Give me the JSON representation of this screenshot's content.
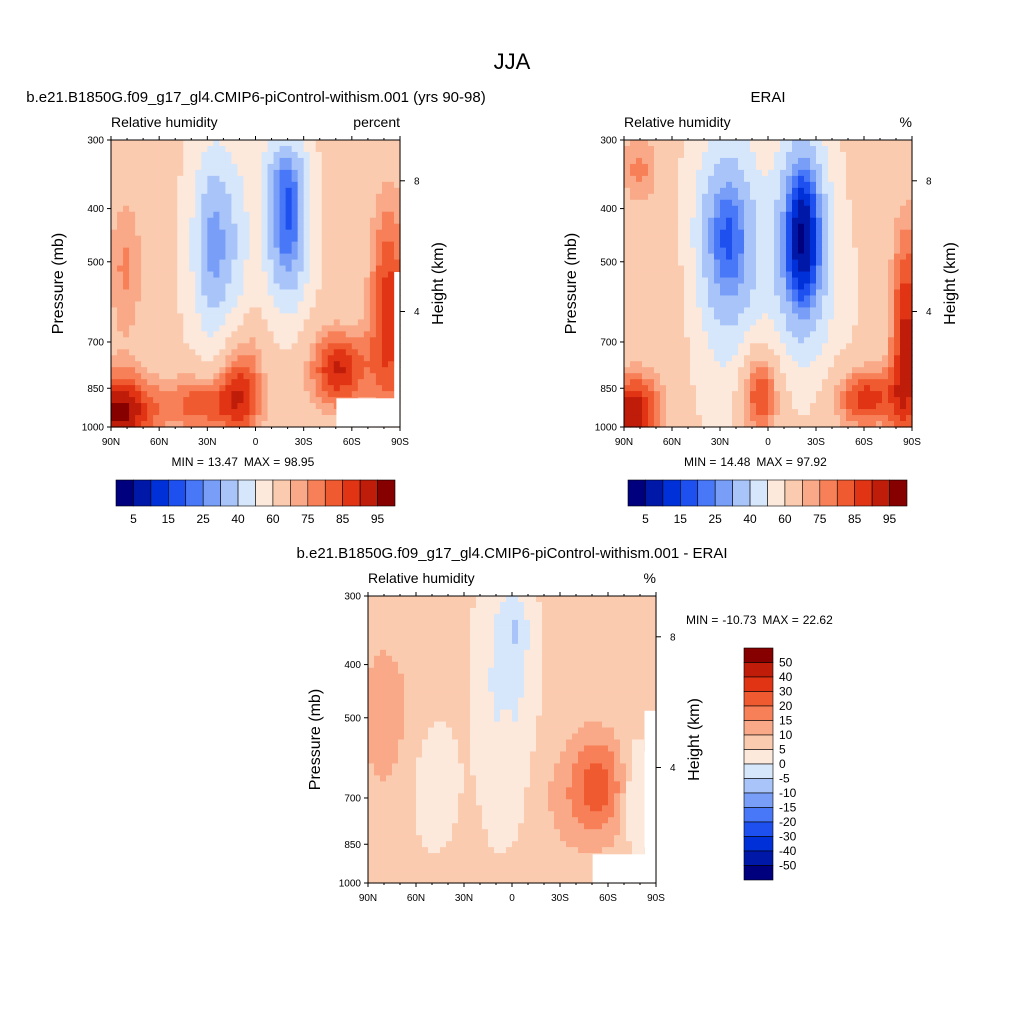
{
  "figure": {
    "title": "JJA"
  },
  "colors": {
    "rh_scale": [
      "#00007f",
      "#0018a8",
      "#0030d8",
      "#1e50f0",
      "#4878f8",
      "#789ef8",
      "#a8c4f8",
      "#d6e6fb",
      "#fde8dc",
      "#fbcbb0",
      "#f9a988",
      "#f78058",
      "#f05a30",
      "#e03414",
      "#bf1c0a",
      "#860000"
    ],
    "diff_scale": [
      "#00007f",
      "#0018a8",
      "#0030d8",
      "#1e50f0",
      "#4878f8",
      "#789ef8",
      "#a8c4f8",
      "#d6e6fb",
      "#fde8dc",
      "#fbcbb0",
      "#f9a988",
      "#f78058",
      "#f05a30",
      "#e03414",
      "#bf1c0a",
      "#860000"
    ],
    "missing": "#ffffff"
  },
  "chart_data": [
    {
      "type": "heatmap",
      "title": "b.e21.B1850G.f09_g17_gl4.CMIP6-piControl-withism.001 (yrs 90-98)",
      "left_label": "Relative humidity",
      "right_label": "percent",
      "xlabel": "",
      "ylabel": "Pressure (mb)",
      "ylabel_right": "Height (km)",
      "x_ticks": [
        "90N",
        "60N",
        "30N",
        "0",
        "30S",
        "60S",
        "90S"
      ],
      "x_range": [
        90,
        -90
      ],
      "y_ticks": [
        "300",
        "400",
        "500",
        "700",
        "850",
        "1000"
      ],
      "y_range": [
        300,
        1000
      ],
      "y_scale": "log",
      "height_ticks": [
        "8",
        "4"
      ],
      "min_label": "MIN =",
      "min_value": "13.47",
      "max_label": "MAX =",
      "max_value": "98.95",
      "colorbar_labels": [
        "5",
        "15",
        "25",
        "40",
        "60",
        "75",
        "85",
        "95"
      ],
      "colorbar_levels": [
        5,
        10,
        15,
        20,
        25,
        30,
        40,
        50,
        60,
        70,
        75,
        80,
        85,
        90,
        95
      ],
      "colorbar_orientation": "horizontal",
      "dataset": "model"
    },
    {
      "type": "heatmap",
      "title": "ERAI",
      "left_label": "Relative humidity",
      "right_label": "%",
      "xlabel": "",
      "ylabel": "Pressure (mb)",
      "ylabel_right": "Height (km)",
      "x_ticks": [
        "90N",
        "60N",
        "30N",
        "0",
        "30S",
        "60S",
        "90S"
      ],
      "x_range": [
        90,
        -90
      ],
      "y_ticks": [
        "300",
        "400",
        "500",
        "700",
        "850",
        "1000"
      ],
      "y_range": [
        300,
        1000
      ],
      "y_scale": "log",
      "height_ticks": [
        "8",
        "4"
      ],
      "min_label": "MIN =",
      "min_value": "14.48",
      "max_label": "MAX =",
      "max_value": "97.92",
      "colorbar_labels": [
        "5",
        "15",
        "25",
        "40",
        "60",
        "75",
        "85",
        "95"
      ],
      "colorbar_levels": [
        5,
        10,
        15,
        20,
        25,
        30,
        40,
        50,
        60,
        70,
        75,
        80,
        85,
        90,
        95
      ],
      "colorbar_orientation": "horizontal",
      "dataset": "erai"
    },
    {
      "type": "heatmap",
      "title": "b.e21.B1850G.f09_g17_gl4.CMIP6-piControl-withism.001 - ERAI",
      "left_label": "Relative humidity",
      "right_label": "%",
      "xlabel": "",
      "ylabel": "Pressure (mb)",
      "ylabel_right": "Height (km)",
      "x_ticks": [
        "90N",
        "60N",
        "30N",
        "0",
        "30S",
        "60S",
        "90S"
      ],
      "x_range": [
        90,
        -90
      ],
      "y_ticks": [
        "300",
        "400",
        "500",
        "700",
        "850",
        "1000"
      ],
      "y_range": [
        300,
        1000
      ],
      "y_scale": "log",
      "height_ticks": [
        "8",
        "4"
      ],
      "min_label": "MIN =",
      "min_value": "-10.73",
      "max_label": "MAX =",
      "max_value": "22.62",
      "colorbar_labels": [
        "50",
        "40",
        "30",
        "20",
        "15",
        "10",
        "5",
        "0",
        "-5",
        "-10",
        "-15",
        "-20",
        "-30",
        "-40",
        "-50"
      ],
      "colorbar_levels": [
        -50,
        -40,
        -30,
        -20,
        -15,
        -10,
        -5,
        0,
        5,
        10,
        15,
        20,
        30,
        40,
        50
      ],
      "colorbar_orientation": "vertical",
      "dataset": "diff"
    }
  ]
}
